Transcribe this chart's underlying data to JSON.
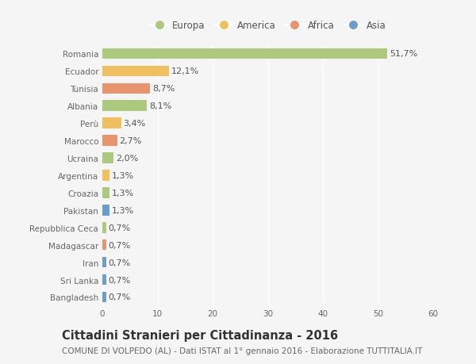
{
  "countries": [
    "Romania",
    "Ecuador",
    "Tunisia",
    "Albania",
    "Perù",
    "Marocco",
    "Ucraina",
    "Argentina",
    "Croazia",
    "Pakistan",
    "Repubblica Ceca",
    "Madagascar",
    "Iran",
    "Sri Lanka",
    "Bangladesh"
  ],
  "values": [
    51.7,
    12.1,
    8.7,
    8.1,
    3.4,
    2.7,
    2.0,
    1.3,
    1.3,
    1.3,
    0.7,
    0.7,
    0.7,
    0.7,
    0.7
  ],
  "labels": [
    "51,7%",
    "12,1%",
    "8,7%",
    "8,1%",
    "3,4%",
    "2,7%",
    "2,0%",
    "1,3%",
    "1,3%",
    "1,3%",
    "0,7%",
    "0,7%",
    "0,7%",
    "0,7%",
    "0,7%"
  ],
  "continents": [
    "Europa",
    "America",
    "Africa",
    "Europa",
    "America",
    "Africa",
    "Europa",
    "America",
    "Europa",
    "Asia",
    "Europa",
    "Africa",
    "Asia",
    "Asia",
    "Asia"
  ],
  "continent_colors": {
    "Europa": "#adc97e",
    "America": "#f0c060",
    "Africa": "#e8956d",
    "Asia": "#6b9ec8"
  },
  "legend_order": [
    "Europa",
    "America",
    "Africa",
    "Asia"
  ],
  "xlim": [
    0,
    60
  ],
  "xticks": [
    0,
    10,
    20,
    30,
    40,
    50,
    60
  ],
  "title": "Cittadini Stranieri per Cittadinanza - 2016",
  "subtitle": "COMUNE DI VOLPEDO (AL) - Dati ISTAT al 1° gennaio 2016 - Elaborazione TUTTITALIA.IT",
  "bg_color": "#f5f5f5",
  "bar_height": 0.62,
  "title_fontsize": 10.5,
  "subtitle_fontsize": 7.5,
  "label_fontsize": 8,
  "tick_fontsize": 7.5,
  "axis_label_color": "#666666",
  "value_label_color": "#555555",
  "grid_color": "#ffffff"
}
